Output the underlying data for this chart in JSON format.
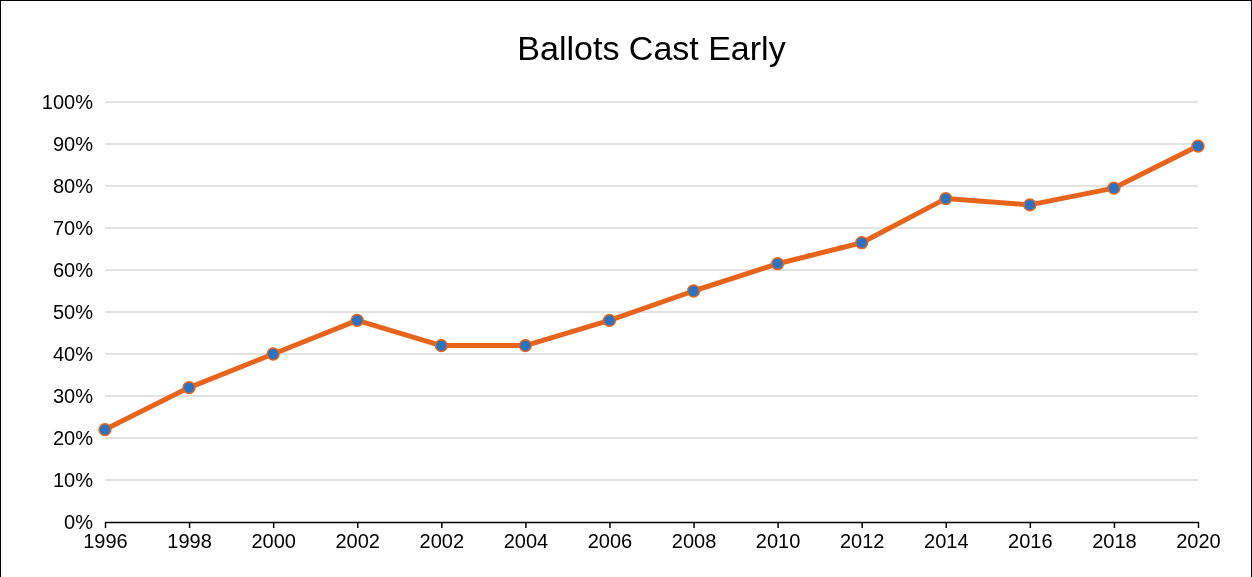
{
  "chart_data": {
    "type": "line",
    "title": "Ballots Cast Early",
    "categories": [
      "1996",
      "1998",
      "2000",
      "2002",
      "2002",
      "2004",
      "2006",
      "2008",
      "2010",
      "2012",
      "2014",
      "2016",
      "2018",
      "2020"
    ],
    "series": [
      {
        "color": "#e8641b",
        "values": [
          22,
          32,
          40,
          48,
          42,
          42,
          48,
          55,
          61.5,
          66.5,
          77,
          75.5,
          79.5,
          89.5
        ]
      }
    ],
    "ylim": [
      0,
      100
    ],
    "yticks": [
      {
        "value": 0,
        "label": "0%"
      },
      {
        "value": 10,
        "label": "10%"
      },
      {
        "value": 20,
        "label": "20%"
      },
      {
        "value": 30,
        "label": "30%"
      },
      {
        "value": 40,
        "label": "40%"
      },
      {
        "value": 50,
        "label": "50%"
      },
      {
        "value": 60,
        "label": "60%"
      },
      {
        "value": 70,
        "label": "70%"
      },
      {
        "value": 80,
        "label": "80%"
      },
      {
        "value": 90,
        "label": "90%"
      },
      {
        "value": 100,
        "label": "100%"
      }
    ],
    "grid": "y",
    "marker": "circle",
    "line_style": "solid",
    "legend": false
  }
}
